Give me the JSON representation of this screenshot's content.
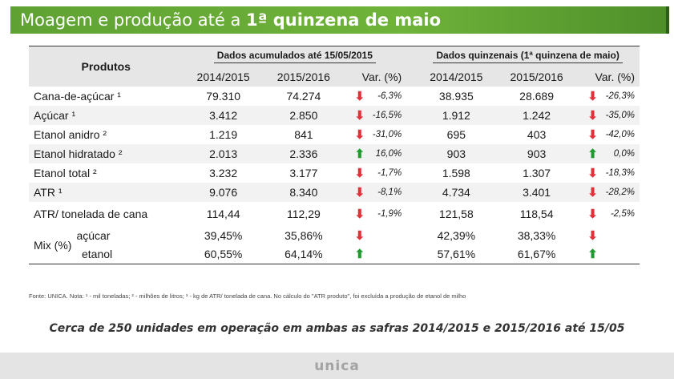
{
  "title_prefix": "Moagem e produção até a ",
  "title_bold": "1ª quinzena de maio",
  "table": {
    "products_header": "Produtos",
    "group_accumulated": "Dados acumulados até 15/05/2015",
    "group_biweekly": "Dados quinzenais (1ª quinzena de maio)",
    "col_2014": "2014/2015",
    "col_2015": "2015/2016",
    "col_var": "Var. (%)",
    "rows": [
      {
        "name": "Cana-de-açúcar ¹",
        "a1": "79.310",
        "a2": "74.274",
        "adir": "down",
        "avar": "-6,3%",
        "b1": "38.935",
        "b2": "28.689",
        "bdir": "down",
        "bvar": "-26,3%"
      },
      {
        "name": "Açúcar ¹",
        "a1": "3.412",
        "a2": "2.850",
        "adir": "down",
        "avar": "-16,5%",
        "b1": "1.912",
        "b2": "1.242",
        "bdir": "down",
        "bvar": "-35,0%"
      },
      {
        "name": "Etanol anidro ²",
        "a1": "1.219",
        "a2": "841",
        "adir": "down",
        "avar": "-31,0%",
        "b1": "695",
        "b2": "403",
        "bdir": "down",
        "bvar": "-42,0%"
      },
      {
        "name": "Etanol hidratado ²",
        "a1": "2.013",
        "a2": "2.336",
        "adir": "up",
        "avar": "16,0%",
        "b1": "903",
        "b2": "903",
        "bdir": "up",
        "bvar": "0,0%"
      },
      {
        "name": "Etanol total ²",
        "a1": "3.232",
        "a2": "3.177",
        "adir": "down",
        "avar": "-1,7%",
        "b1": "1.598",
        "b2": "1.307",
        "bdir": "down",
        "bvar": "-18,3%"
      },
      {
        "name": "ATR ¹",
        "a1": "9.076",
        "a2": "8.340",
        "adir": "down",
        "avar": "-8,1%",
        "b1": "4.734",
        "b2": "3.401",
        "bdir": "down",
        "bvar": "-28,2%"
      },
      {
        "name": "ATR/ tonelada de cana",
        "a1": "114,44",
        "a2": "112,29",
        "adir": "down",
        "avar": "-1,9%",
        "b1": "121,58",
        "b2": "118,54",
        "bdir": "down",
        "bvar": "-2,5%"
      }
    ],
    "mix_label": "Mix (%)",
    "mix_rows": [
      {
        "name": "açúcar",
        "a1": "39,45%",
        "a2": "35,86%",
        "adir": "down",
        "b1": "42,39%",
        "b2": "38,33%",
        "bdir": "down"
      },
      {
        "name": "etanol",
        "a1": "60,55%",
        "a2": "64,14%",
        "adir": "up",
        "b1": "57,61%",
        "b2": "61,67%",
        "bdir": "up"
      }
    ]
  },
  "footnote": "Fonte: UNICA. Nota: ¹ - mil toneladas; ² - milhões de litros; ³ - kg de ATR/ tonelada de cana. No cálculo do \"ATR produto\", foi excluída a produção de etanol de milho",
  "headline": "Cerca de 250 unidades em operação em ambas as safras 2014/2015 e 2015/2016 até 15/05",
  "logo": "UNICA",
  "colors": {
    "arrow_down": "#e0303a",
    "arrow_up": "#1f9a2f",
    "banner": "#6fb33a"
  }
}
